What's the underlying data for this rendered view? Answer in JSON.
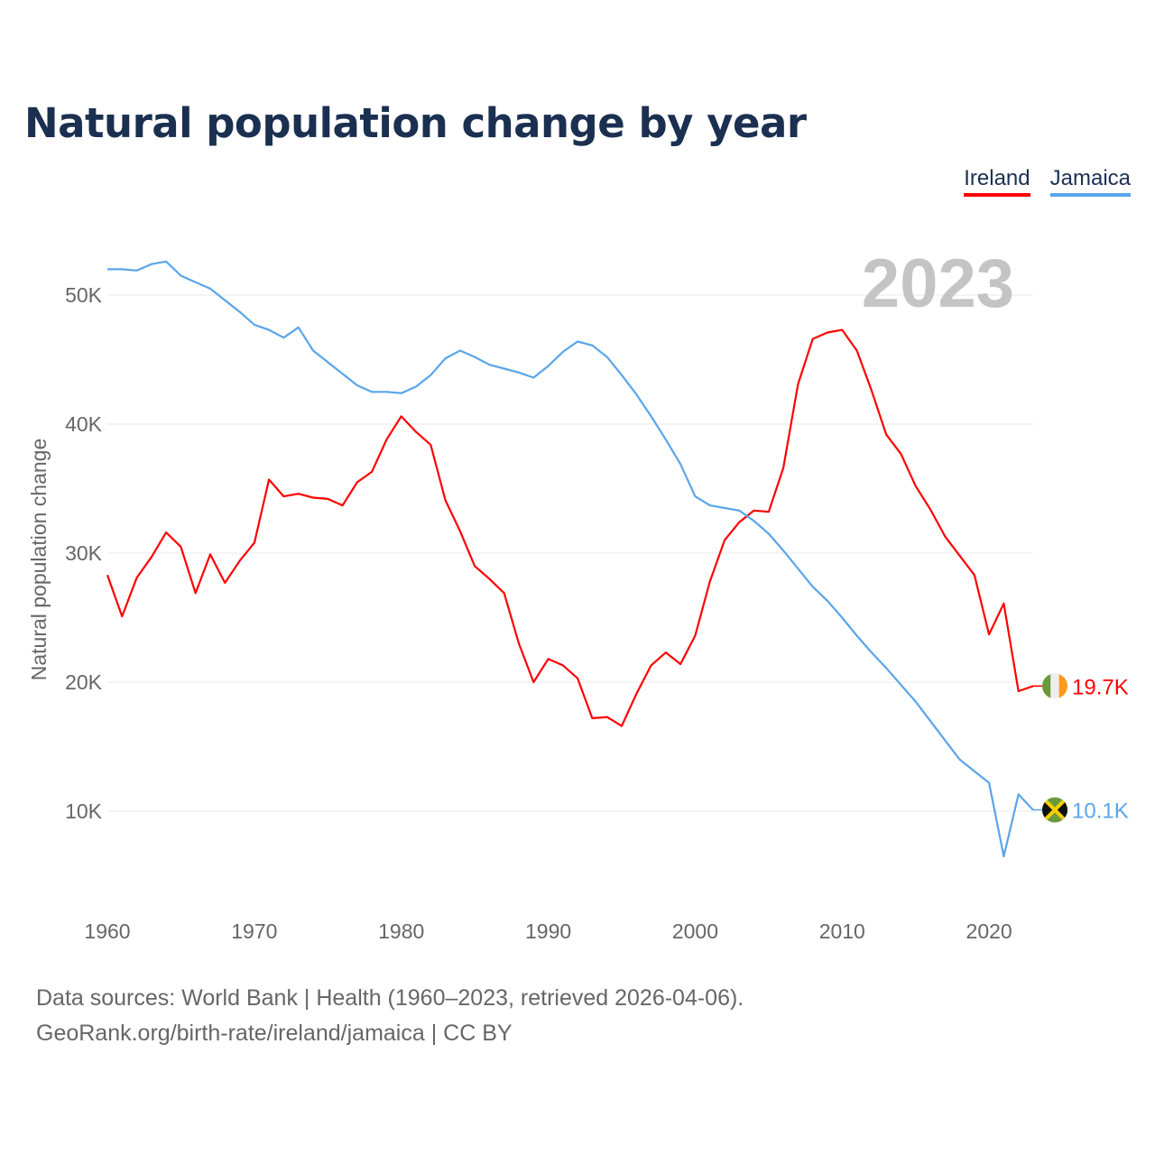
{
  "header": {
    "title": "Natural population change by year"
  },
  "legend": [
    {
      "label": "Ireland",
      "color": "#ff0000"
    },
    {
      "label": "Jamaica",
      "color": "#5aa5ea"
    }
  ],
  "footer": {
    "line1": "Data sources: World Bank | Health (1960–2023, retrieved 2026-04-06).",
    "line2": "GeoRank.org/birth-rate/ireland/jamaica | CC BY"
  },
  "chart_data": {
    "type": "line",
    "title": "Natural population change by year",
    "xlabel": "",
    "ylabel": "Natural population change",
    "year_overlay": "2023",
    "xlim": [
      1960,
      2023
    ],
    "ylim": [
      3000,
      55000
    ],
    "x_ticks": [
      1960,
      1970,
      1980,
      1990,
      2000,
      2010,
      2020
    ],
    "y_ticks": [
      {
        "value": 10000,
        "label": "10K"
      },
      {
        "value": 20000,
        "label": "20K"
      },
      {
        "value": 30000,
        "label": "30K"
      },
      {
        "value": 40000,
        "label": "40K"
      },
      {
        "value": 50000,
        "label": "50K"
      }
    ],
    "grid": true,
    "legend_position": "top-right",
    "x": [
      1960,
      1961,
      1962,
      1963,
      1964,
      1965,
      1966,
      1967,
      1968,
      1969,
      1970,
      1971,
      1972,
      1973,
      1974,
      1975,
      1976,
      1977,
      1978,
      1979,
      1980,
      1981,
      1982,
      1983,
      1984,
      1985,
      1986,
      1987,
      1988,
      1989,
      1990,
      1991,
      1992,
      1993,
      1994,
      1995,
      1996,
      1997,
      1998,
      1999,
      2000,
      2001,
      2002,
      2003,
      2004,
      2005,
      2006,
      2007,
      2008,
      2009,
      2010,
      2011,
      2012,
      2013,
      2014,
      2015,
      2016,
      2017,
      2018,
      2019,
      2020,
      2021,
      2022,
      2023
    ],
    "series": [
      {
        "name": "Ireland",
        "color": "#ff0000",
        "end_label": "19.7K",
        "flag": "ireland-flag",
        "values": [
          28300,
          25100,
          28100,
          29700,
          31600,
          30500,
          26900,
          29900,
          27700,
          29400,
          30800,
          35700,
          34400,
          34600,
          34300,
          34200,
          33700,
          35500,
          36300,
          38800,
          40600,
          39400,
          38400,
          34100,
          31700,
          29000,
          28000,
          26900,
          23000,
          20000,
          21800,
          21300,
          20300,
          17200,
          17300,
          16600,
          19100,
          21300,
          22300,
          21400,
          23600,
          27800,
          31000,
          32400,
          33300,
          33200,
          36600,
          43100,
          46600,
          47100,
          47300,
          45700,
          42600,
          39200,
          37700,
          35200,
          33400,
          31300,
          29800,
          28300,
          23700,
          26100,
          19300,
          19700
        ]
      },
      {
        "name": "Jamaica",
        "color": "#5aa5ea",
        "end_label": "10.1K",
        "flag": "jamaica-flag",
        "values": [
          52000,
          52000,
          51900,
          52400,
          52600,
          51500,
          51000,
          50500,
          49600,
          48700,
          47700,
          47300,
          46700,
          47500,
          45700,
          44800,
          43900,
          43000,
          42500,
          42500,
          42400,
          42900,
          43800,
          45100,
          45700,
          45200,
          44600,
          44300,
          44000,
          43600,
          44500,
          45600,
          46400,
          46100,
          45200,
          43800,
          42300,
          40600,
          38800,
          36900,
          34400,
          33700,
          33500,
          33300,
          32500,
          31500,
          30200,
          28800,
          27400,
          26300,
          25000,
          23600,
          22300,
          21100,
          19800,
          18500,
          17000,
          15500,
          14000,
          13100,
          12200,
          6500,
          11300,
          10100
        ]
      }
    ]
  }
}
